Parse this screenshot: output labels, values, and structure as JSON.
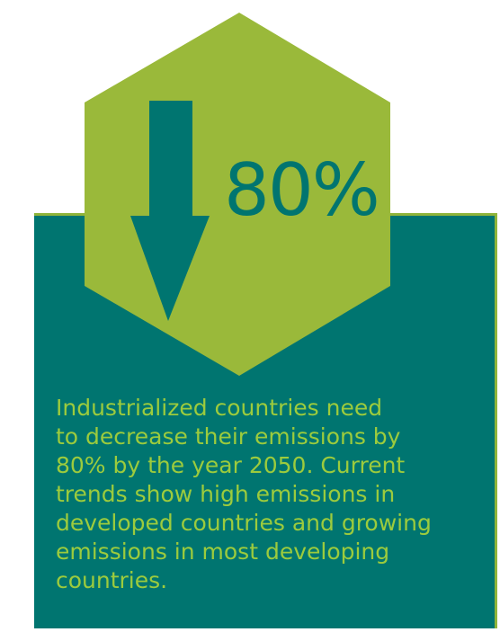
{
  "headline": {
    "value": "80%"
  },
  "description": {
    "line1": "Industrialized countries need",
    "line2": "to decrease their emissions by",
    "line3": "80% by the year 2050. Current",
    "line4": "trends show high emissions in",
    "line5": "developed countries and growing",
    "line6": "emissions in most developing",
    "line7": "countries."
  },
  "colors": {
    "teal": "#007570",
    "green": "#9ab93a",
    "text_green": "#9ccb3d"
  },
  "icons": {
    "arrow": "arrow-down-icon"
  }
}
